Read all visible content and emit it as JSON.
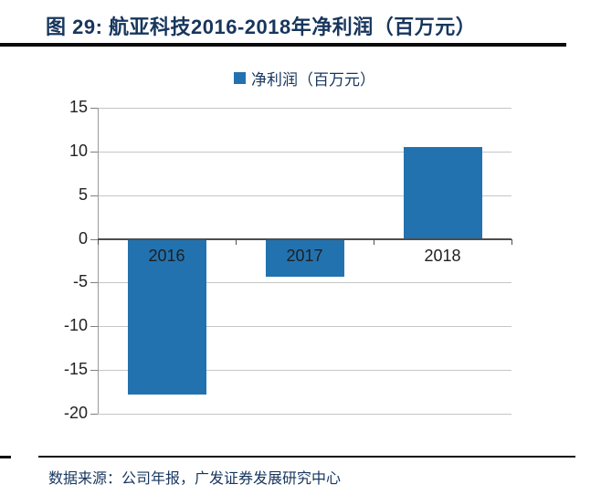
{
  "theme": {
    "navy": "#17365D",
    "bar-blue": "#2272B0",
    "gridline-gray": "#C6C6C6",
    "axis-dark": "#4D4D4D",
    "rule-black": "#0A0A0A"
  },
  "figure": {
    "title": "图 29: 航亚科技2016-2018年净利润（百万元）",
    "source": "数据来源：公司年报，广发证券发展研究中心"
  },
  "legend": {
    "marker": "square-icon",
    "label": "净利润（百万元）"
  },
  "chart_data": {
    "type": "bar",
    "title": "图 29: 航亚科技2016-2018年净利润（百万元）",
    "categories": [
      "2016",
      "2017",
      "2018"
    ],
    "series": [
      {
        "name": "净利润（百万元）",
        "values": [
          -17.8,
          -4.3,
          10.5
        ]
      }
    ],
    "xlabel": "",
    "ylabel": "",
    "ylim": [
      -20,
      15
    ],
    "yticks": [
      15,
      10,
      5,
      0,
      -5,
      -10,
      -15,
      -20
    ],
    "grid": true,
    "legend_position": "top-center",
    "bar_color": "#2272B0"
  }
}
